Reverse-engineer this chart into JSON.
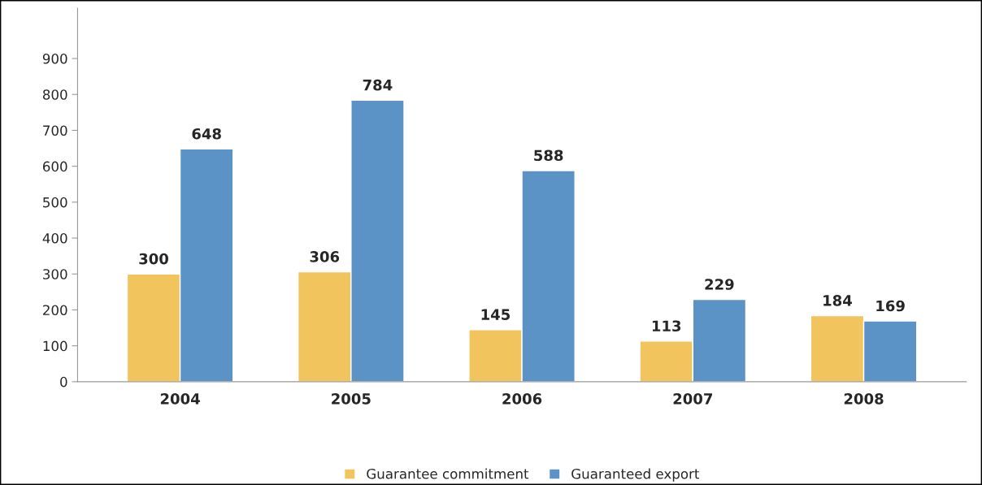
{
  "chart_data": {
    "type": "bar",
    "categories": [
      "2004",
      "2005",
      "2006",
      "2007",
      "2008"
    ],
    "series": [
      {
        "name": "Guarantee commitment",
        "color": "#f2c45e",
        "values": [
          300,
          306,
          145,
          113,
          184
        ]
      },
      {
        "name": "Guaranteed export",
        "color": "#5b93c7",
        "values": [
          648,
          784,
          588,
          229,
          169
        ]
      }
    ],
    "ylim": [
      0,
      1040
    ],
    "yticks": [
      0,
      100,
      200,
      300,
      400,
      500,
      600,
      700,
      800,
      900
    ],
    "data_labels": true,
    "grid": false,
    "legend": "bottom"
  }
}
